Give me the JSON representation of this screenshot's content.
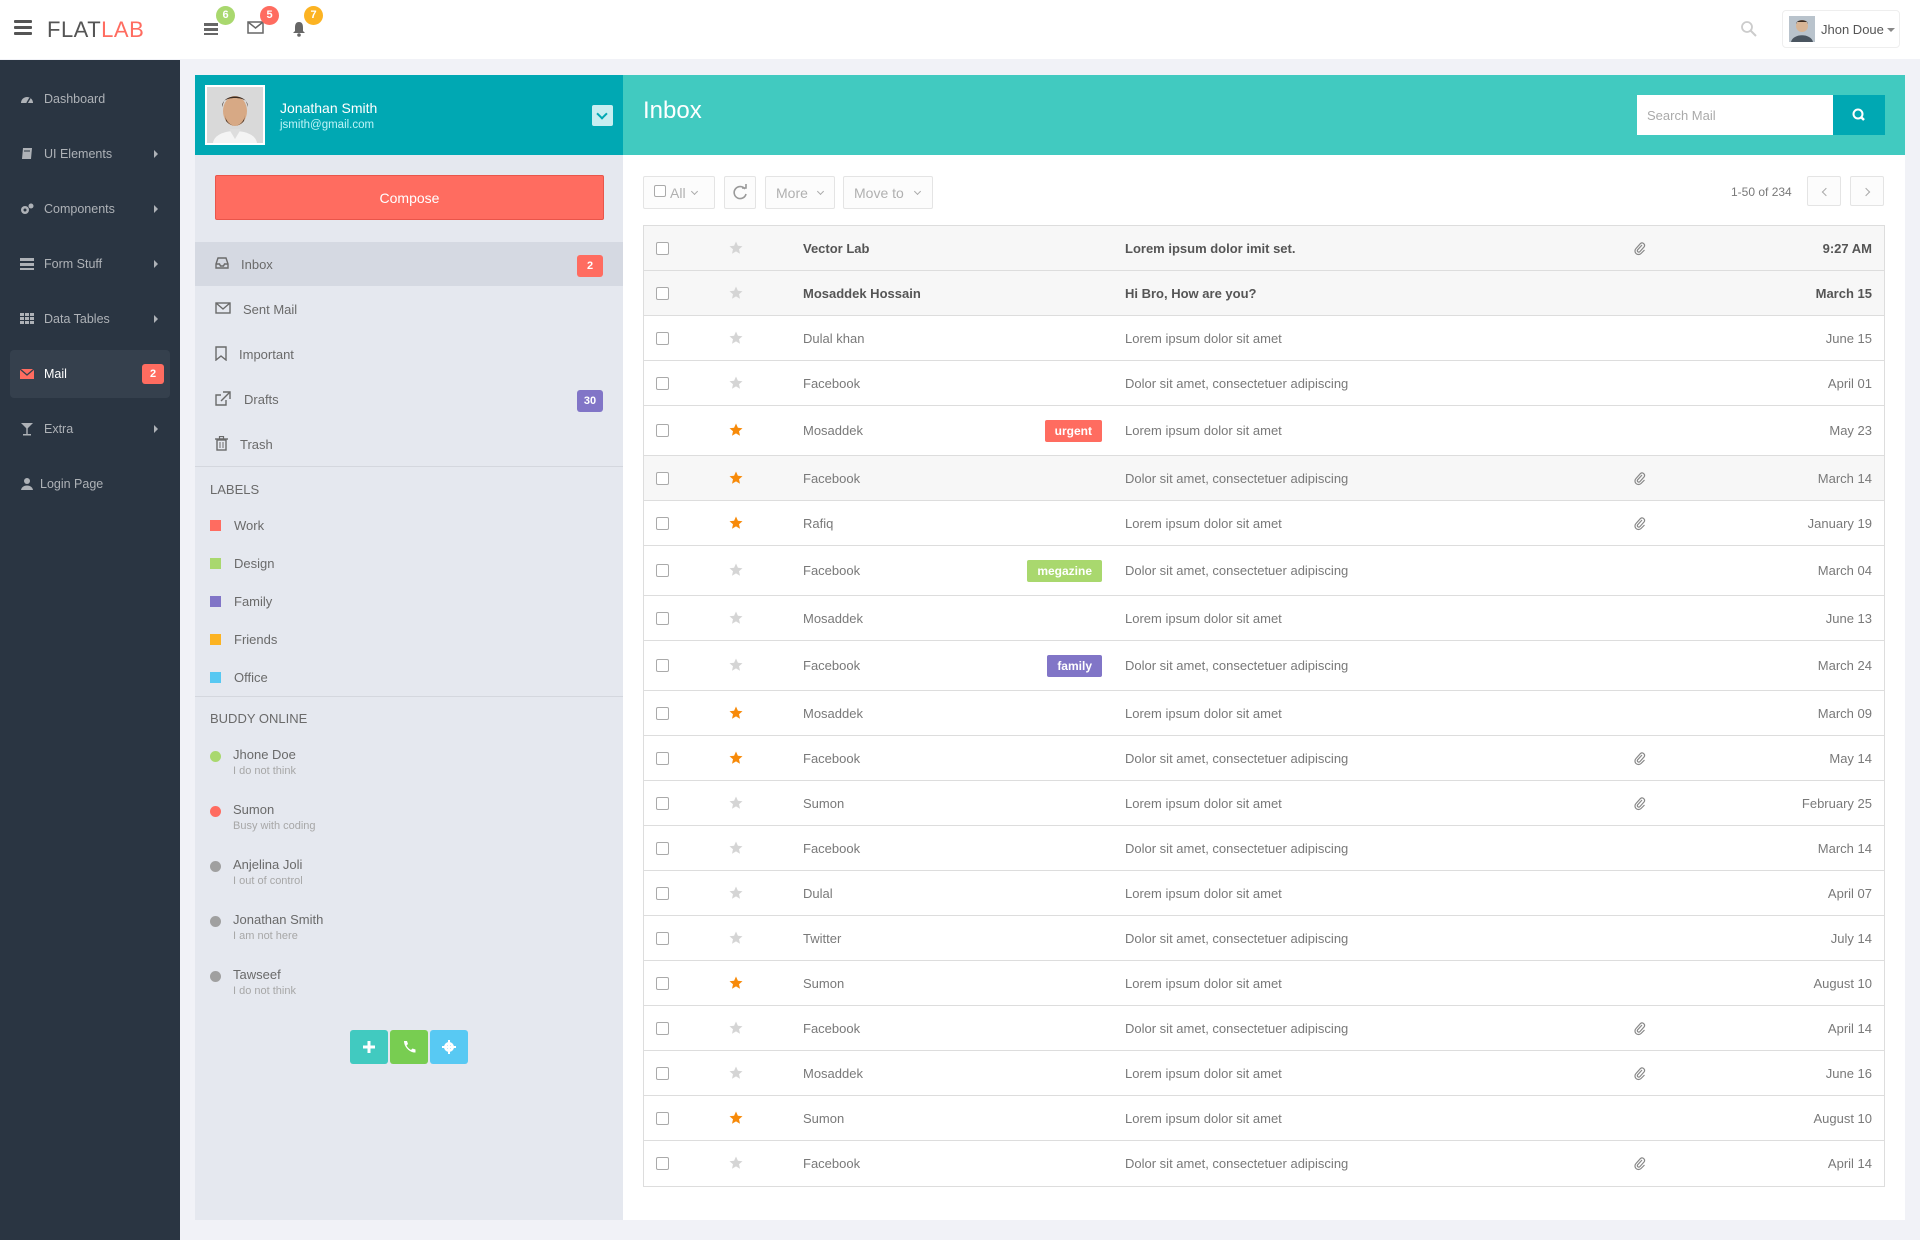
{
  "header": {
    "logo_flat": "FLAT",
    "logo_lab": "LAB",
    "notifications": [
      {
        "icon": "tasks-icon",
        "count": "6",
        "color": "#a9d86e"
      },
      {
        "icon": "envelope-icon",
        "count": "5",
        "color": "#ff6c60"
      },
      {
        "icon": "bell-icon",
        "count": "7",
        "color": "#fcb322"
      }
    ],
    "user_name": "Jhon Doue"
  },
  "sidebar": {
    "items": [
      {
        "label": "Dashboard",
        "icon": "dashboard-icon",
        "arrow": false
      },
      {
        "label": "UI Elements",
        "icon": "book-icon",
        "arrow": true
      },
      {
        "label": "Components",
        "icon": "cogs-icon",
        "arrow": true
      },
      {
        "label": "Form Stuff",
        "icon": "tasks-icon",
        "arrow": true
      },
      {
        "label": "Data Tables",
        "icon": "grid-icon",
        "arrow": true
      },
      {
        "label": "Mail",
        "icon": "envelope-icon",
        "arrow": false,
        "badge": "2",
        "active": true
      },
      {
        "label": "Extra",
        "icon": "glass-icon",
        "arrow": true
      },
      {
        "label": "Login Page",
        "icon": "user-icon",
        "arrow": false
      }
    ]
  },
  "mail_left": {
    "user": {
      "name": "Jonathan Smith",
      "email": "jsmith@gmail.com"
    },
    "compose_label": "Compose",
    "folders": [
      {
        "label": "Inbox",
        "icon": "inbox-icon",
        "badge": "2",
        "badge_color": "#ff6c60",
        "active": true
      },
      {
        "label": "Sent Mail",
        "icon": "envelope-o-icon"
      },
      {
        "label": "Important",
        "icon": "bookmark-icon"
      },
      {
        "label": "Drafts",
        "icon": "external-link-icon",
        "badge": "30",
        "badge_color": "#8175c7"
      },
      {
        "label": "Trash",
        "icon": "trash-icon"
      }
    ],
    "labels_title": "LABELS",
    "labels": [
      {
        "label": "Work",
        "color": "#ff6c60"
      },
      {
        "label": "Design",
        "color": "#a9d86e"
      },
      {
        "label": "Family",
        "color": "#8175c7"
      },
      {
        "label": "Friends",
        "color": "#fcb322"
      },
      {
        "label": "Office",
        "color": "#57c8f2"
      }
    ],
    "buddy_title": "BUDDY ONLINE",
    "buddies": [
      {
        "name": "Jhone Doe",
        "status": "I do not think",
        "color": "#a9d86e"
      },
      {
        "name": "Sumon",
        "status": "Busy with coding",
        "color": "#ff6c60"
      },
      {
        "name": "Anjelina Joli",
        "status": "I out of control",
        "color": "#a0a0a0"
      },
      {
        "name": "Jonathan Smith",
        "status": "I am not here",
        "color": "#a0a0a0"
      },
      {
        "name": "Tawseef",
        "status": "I do not think",
        "color": "#a0a0a0"
      }
    ],
    "actions": [
      {
        "icon": "plus-icon",
        "color": "#41cac0"
      },
      {
        "icon": "phone-icon",
        "color": "#78cd51"
      },
      {
        "icon": "gear-icon",
        "color": "#58c9f3"
      }
    ]
  },
  "inbox": {
    "title": "Inbox",
    "search_placeholder": "Search Mail",
    "toolbar": {
      "all": "All",
      "more": "More",
      "move_to": "Move to"
    },
    "pager": "1-50 of 234",
    "rows": [
      {
        "sender": "Vector Lab",
        "subject": "Lorem ipsum dolor imit set.",
        "date": "9:27 AM",
        "unread": true,
        "starred": false,
        "clip": true,
        "tag": ""
      },
      {
        "sender": "Mosaddek Hossain",
        "subject": "Hi Bro, How are you?",
        "date": "March 15",
        "unread": true,
        "starred": false,
        "clip": false,
        "tag": ""
      },
      {
        "sender": "Dulal khan",
        "subject": "Lorem ipsum dolor sit amet",
        "date": "June 15",
        "unread": false,
        "starred": false,
        "clip": false,
        "tag": ""
      },
      {
        "sender": "Facebook",
        "subject": "Dolor sit amet, consectetuer adipiscing",
        "date": "April 01",
        "unread": false,
        "starred": false,
        "clip": false,
        "tag": ""
      },
      {
        "sender": "Mosaddek",
        "subject": "Lorem ipsum dolor sit amet",
        "date": "May 23",
        "unread": false,
        "starred": true,
        "clip": false,
        "tag": "urgent",
        "tag_color": "#ff6c60"
      },
      {
        "sender": "Facebook",
        "subject": "Dolor sit amet, consectetuer adipiscing",
        "date": "March 14",
        "unread": false,
        "starred": true,
        "clip": true,
        "tag": "",
        "shaded": true
      },
      {
        "sender": "Rafiq",
        "subject": "Lorem ipsum dolor sit amet",
        "date": "January 19",
        "unread": false,
        "starred": true,
        "clip": true,
        "tag": ""
      },
      {
        "sender": "Facebook",
        "subject": "Dolor sit amet, consectetuer adipiscing",
        "date": "March 04",
        "unread": false,
        "starred": false,
        "clip": false,
        "tag": "megazine",
        "tag_color": "#a9d86e"
      },
      {
        "sender": "Mosaddek",
        "subject": "Lorem ipsum dolor sit amet",
        "date": "June 13",
        "unread": false,
        "starred": false,
        "clip": false,
        "tag": ""
      },
      {
        "sender": "Facebook",
        "subject": "Dolor sit amet, consectetuer adipiscing",
        "date": "March 24",
        "unread": false,
        "starred": false,
        "clip": false,
        "tag": "family",
        "tag_color": "#8175c7"
      },
      {
        "sender": "Mosaddek",
        "subject": "Lorem ipsum dolor sit amet",
        "date": "March 09",
        "unread": false,
        "starred": true,
        "clip": false,
        "tag": ""
      },
      {
        "sender": "Facebook",
        "subject": "Dolor sit amet, consectetuer adipiscing",
        "date": "May 14",
        "unread": false,
        "starred": true,
        "clip": true,
        "tag": ""
      },
      {
        "sender": "Sumon",
        "subject": "Lorem ipsum dolor sit amet",
        "date": "February 25",
        "unread": false,
        "starred": false,
        "clip": true,
        "tag": ""
      },
      {
        "sender": "Facebook",
        "subject": "Dolor sit amet, consectetuer adipiscing",
        "date": "March 14",
        "unread": false,
        "starred": false,
        "clip": false,
        "tag": ""
      },
      {
        "sender": "Dulal",
        "subject": "Lorem ipsum dolor sit amet",
        "date": "April 07",
        "unread": false,
        "starred": false,
        "clip": false,
        "tag": ""
      },
      {
        "sender": "Twitter",
        "subject": "Dolor sit amet, consectetuer adipiscing",
        "date": "July 14",
        "unread": false,
        "starred": false,
        "clip": false,
        "tag": ""
      },
      {
        "sender": "Sumon",
        "subject": "Lorem ipsum dolor sit amet",
        "date": "August 10",
        "unread": false,
        "starred": true,
        "clip": false,
        "tag": ""
      },
      {
        "sender": "Facebook",
        "subject": "Dolor sit amet, consectetuer adipiscing",
        "date": "April 14",
        "unread": false,
        "starred": false,
        "clip": true,
        "tag": ""
      },
      {
        "sender": "Mosaddek",
        "subject": "Lorem ipsum dolor sit amet",
        "date": "June 16",
        "unread": false,
        "starred": false,
        "clip": true,
        "tag": ""
      },
      {
        "sender": "Sumon",
        "subject": "Lorem ipsum dolor sit amet",
        "date": "August 10",
        "unread": false,
        "starred": true,
        "clip": false,
        "tag": ""
      },
      {
        "sender": "Facebook",
        "subject": "Dolor sit amet, consectetuer adipiscing",
        "date": "April 14",
        "unread": false,
        "starred": false,
        "clip": true,
        "tag": ""
      }
    ]
  }
}
